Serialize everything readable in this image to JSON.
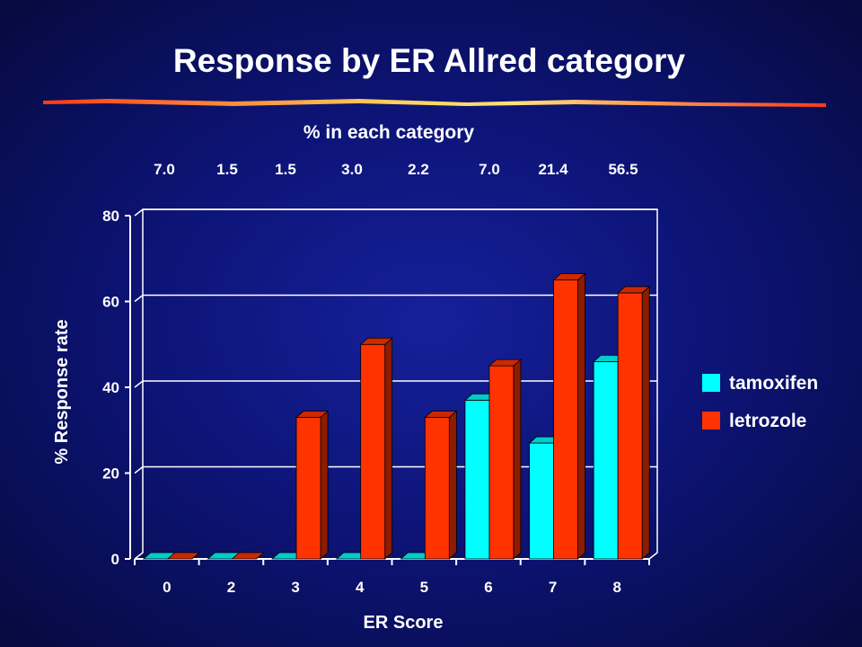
{
  "slide": {
    "title": "Response by ER Allred category",
    "subtitle": "% in each category",
    "category_percentages": [
      "7.0",
      "1.5",
      "1.5",
      "3.0",
      "2.2",
      "7.0",
      "21.4",
      "56.5"
    ]
  },
  "colors": {
    "tamoxifen": "#00ffff",
    "letrozole": "#ff3300",
    "background": "#0d1478",
    "title_underline": "#ff5533"
  },
  "chart_data": {
    "type": "bar",
    "title": "Response by ER Allred category",
    "xlabel": "ER Score",
    "ylabel": "% Response rate",
    "categories": [
      "0",
      "2",
      "3",
      "4",
      "5",
      "6",
      "7",
      "8"
    ],
    "series": [
      {
        "name": "tamoxifen",
        "values": [
          0,
          0,
          0,
          0,
          0,
          37,
          27,
          46
        ]
      },
      {
        "name": "letrozole",
        "values": [
          0,
          0,
          33,
          50,
          33,
          45,
          65,
          62
        ]
      }
    ],
    "ylim": [
      0,
      80
    ],
    "yticks": [
      "0",
      "20",
      "40",
      "60",
      "80"
    ],
    "grid": true,
    "legend_position": "right",
    "style": "3d"
  },
  "legend": {
    "items": [
      {
        "label": "tamoxifen",
        "color": "#00ffff"
      },
      {
        "label": "letrozole",
        "color": "#ff3300"
      }
    ]
  }
}
